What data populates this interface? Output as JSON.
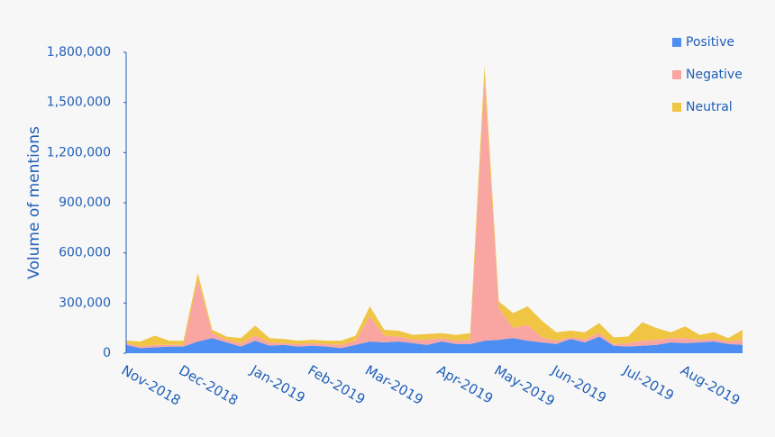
{
  "chart_data": {
    "type": "stacked-area",
    "y_label": "Volume of mentions",
    "categories": [
      "Nov-2018",
      null,
      null,
      null,
      "Dec-2018",
      null,
      null,
      null,
      null,
      "Jan-2019",
      null,
      null,
      null,
      "Feb-2019",
      null,
      null,
      null,
      "Mar-2019",
      null,
      null,
      null,
      null,
      "Apr-2019",
      null,
      null,
      null,
      "May-2019",
      null,
      null,
      null,
      "Jun-2019",
      null,
      null,
      null,
      null,
      "Jul-2019",
      null,
      null,
      null,
      "Aug-2019",
      null,
      null,
      null,
      null
    ],
    "series": [
      {
        "name": "Positive",
        "color": "#4d8ef2",
        "values": [
          50000,
          30000,
          35000,
          40000,
          40000,
          70000,
          90000,
          65000,
          40000,
          75000,
          45000,
          50000,
          40000,
          45000,
          40000,
          30000,
          50000,
          70000,
          65000,
          70000,
          60000,
          50000,
          70000,
          55000,
          55000,
          75000,
          80000,
          90000,
          75000,
          65000,
          55000,
          85000,
          65000,
          100000,
          45000,
          40000,
          45000,
          50000,
          65000,
          60000,
          65000,
          70000,
          55000,
          50000
        ]
      },
      {
        "name": "Negative",
        "color": "#f9a5a2",
        "values": [
          10000,
          10000,
          15000,
          10000,
          10000,
          370000,
          30000,
          15000,
          20000,
          30000,
          20000,
          10000,
          15000,
          15000,
          15000,
          20000,
          25000,
          150000,
          40000,
          30000,
          20000,
          30000,
          20000,
          20000,
          25000,
          1560000,
          190000,
          60000,
          95000,
          30000,
          20000,
          10000,
          20000,
          20000,
          10000,
          20000,
          30000,
          30000,
          25000,
          30000,
          15000,
          15000,
          15000,
          30000
        ]
      },
      {
        "name": "Neutral",
        "color": "#f0c544",
        "values": [
          15000,
          30000,
          55000,
          25000,
          25000,
          40000,
          20000,
          20000,
          30000,
          60000,
          25000,
          25000,
          20000,
          20000,
          20000,
          25000,
          30000,
          60000,
          35000,
          35000,
          30000,
          35000,
          30000,
          35000,
          40000,
          85000,
          40000,
          90000,
          110000,
          100000,
          50000,
          40000,
          40000,
          60000,
          40000,
          40000,
          110000,
          70000,
          35000,
          70000,
          30000,
          40000,
          20000,
          60000
        ]
      }
    ],
    "ylim": [
      0,
      1800000
    ],
    "yticks": [
      0,
      {
        "value": 300000,
        "label": "300,000"
      },
      {
        "value": 600000,
        "label": "600,000"
      },
      {
        "value": 900000,
        "label": "900,000"
      },
      {
        "value": 1200000,
        "label": "1,200,000"
      },
      {
        "value": 1500000,
        "label": "1,500,000"
      },
      {
        "value": 1800000,
        "label": "1,800,000"
      }
    ],
    "legend": "top-right"
  }
}
